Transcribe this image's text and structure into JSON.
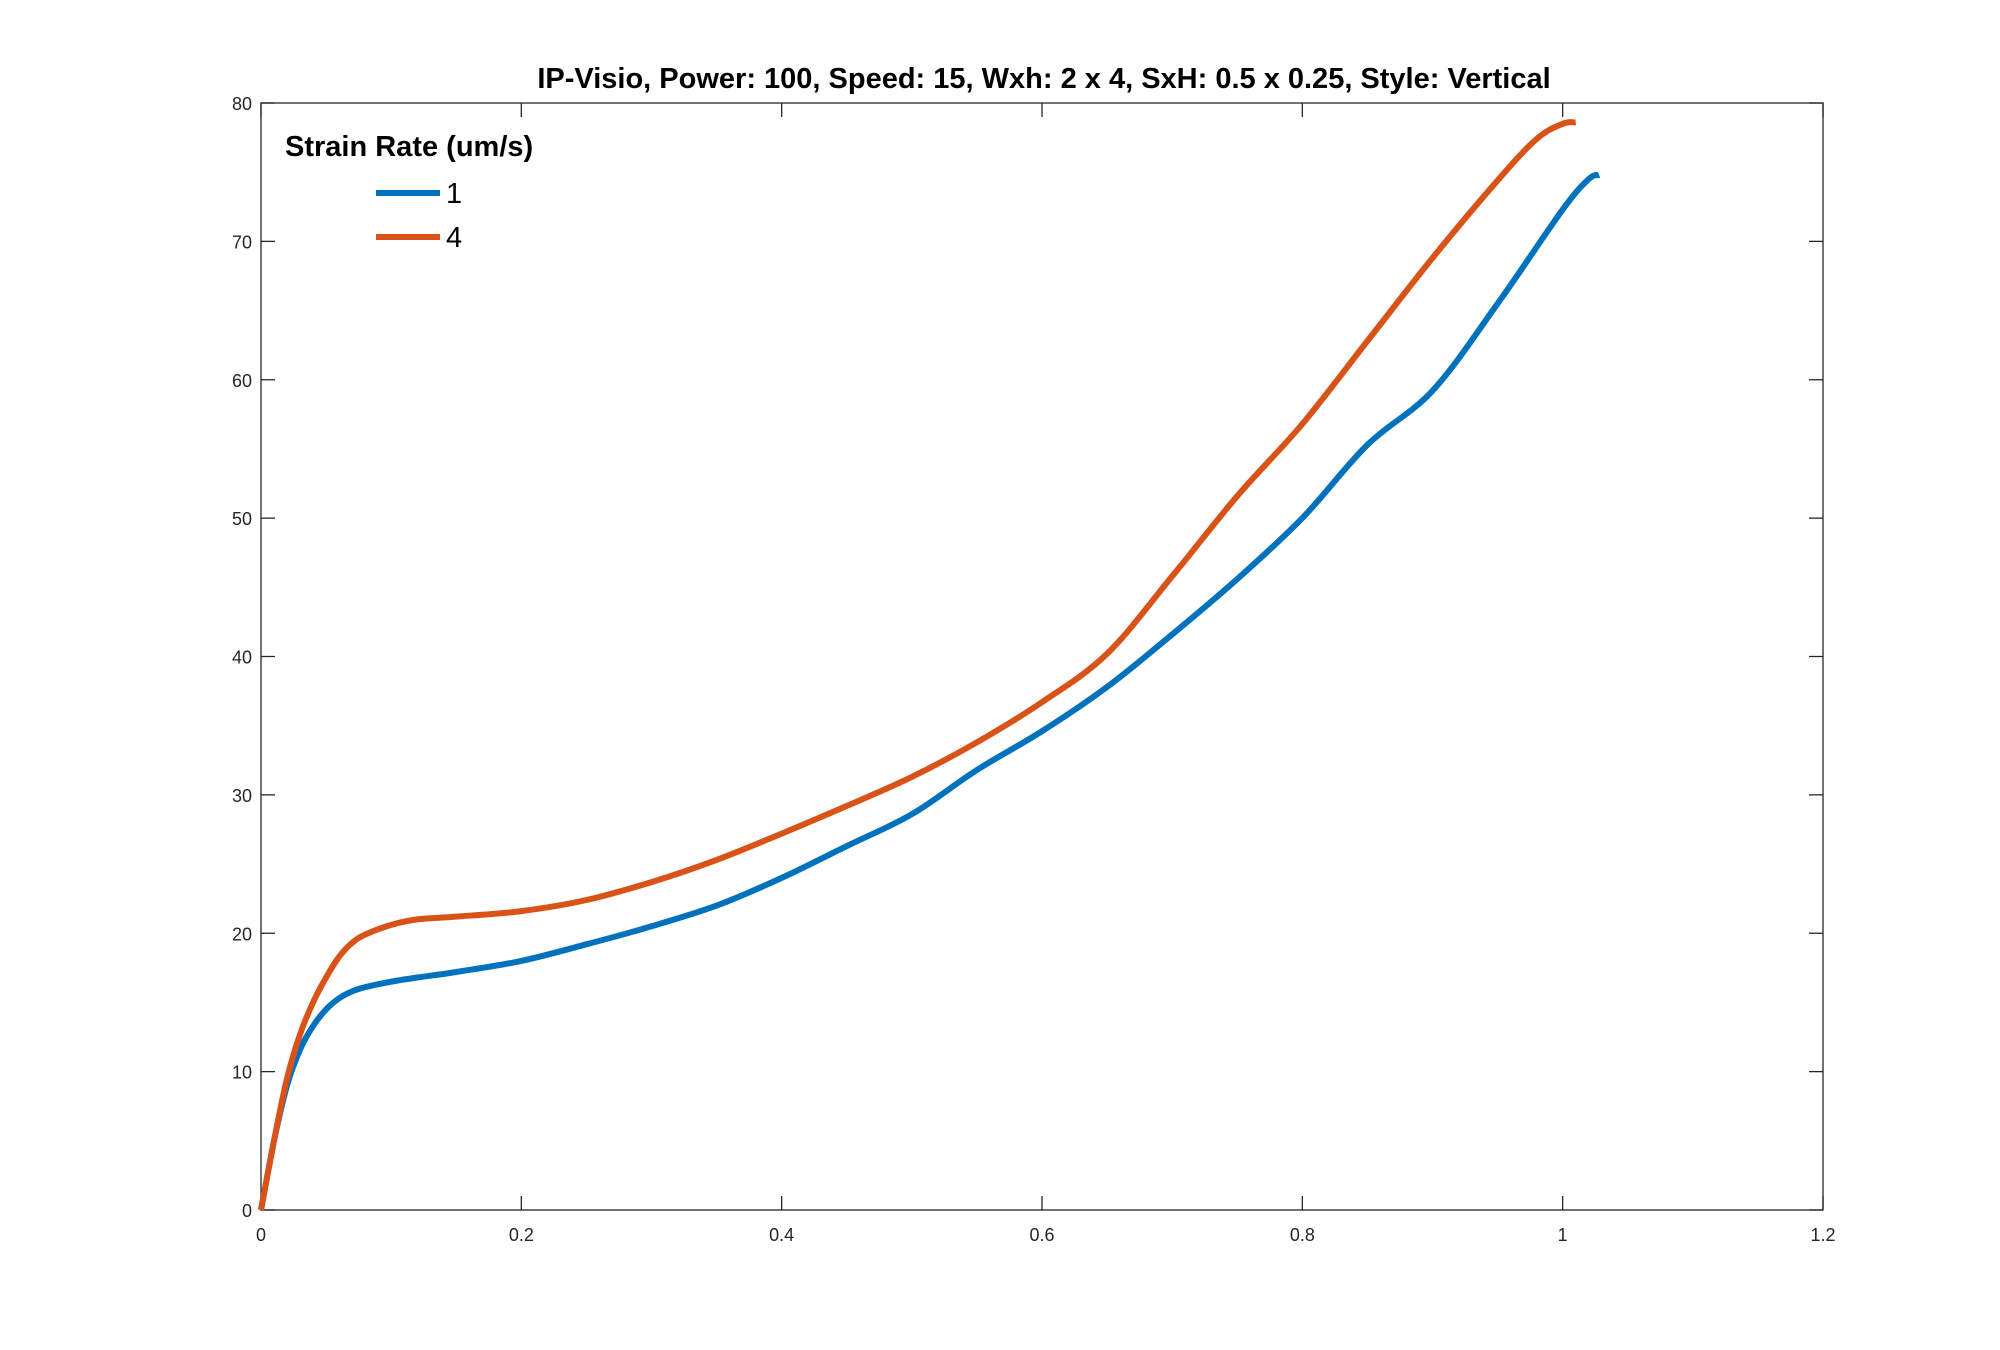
{
  "chart_data": {
    "type": "line",
    "title": "IP-Visio, Power: 100, Speed: 15, Wxh: 2 x 4, SxH: 0.5 x 0.25, Style: Vertical",
    "xlabel": "",
    "ylabel": "",
    "xlim": [
      0,
      1.2
    ],
    "ylim": [
      0,
      80
    ],
    "xticks": [
      0,
      0.2,
      0.4,
      0.6,
      0.8,
      1,
      1.2
    ],
    "xtick_labels": [
      "0",
      "0.2",
      "0.4",
      "0.6",
      "0.8",
      "1",
      "1.2"
    ],
    "yticks": [
      0,
      10,
      20,
      30,
      40,
      50,
      60,
      70,
      80
    ],
    "ytick_labels": [
      "0",
      "10",
      "20",
      "30",
      "40",
      "50",
      "60",
      "70",
      "80"
    ],
    "grid": false,
    "legend": {
      "title": "Strain Rate (um/s)",
      "placement": "top-left"
    },
    "series": [
      {
        "name": "1",
        "color": "#0072BD",
        "points": [
          [
            0,
            0
          ],
          [
            0.01,
            5
          ],
          [
            0.02,
            9
          ],
          [
            0.03,
            11.6
          ],
          [
            0.04,
            13.3
          ],
          [
            0.05,
            14.5
          ],
          [
            0.06,
            15.3
          ],
          [
            0.07,
            15.8
          ],
          [
            0.08,
            16.1
          ],
          [
            0.1,
            16.5
          ],
          [
            0.12,
            16.8
          ],
          [
            0.15,
            17.2
          ],
          [
            0.2,
            18
          ],
          [
            0.25,
            19.2
          ],
          [
            0.3,
            20.5
          ],
          [
            0.35,
            22
          ],
          [
            0.4,
            24
          ],
          [
            0.45,
            26.3
          ],
          [
            0.5,
            28.6
          ],
          [
            0.55,
            31.8
          ],
          [
            0.6,
            34.6
          ],
          [
            0.65,
            37.8
          ],
          [
            0.7,
            41.6
          ],
          [
            0.75,
            45.6
          ],
          [
            0.8,
            50
          ],
          [
            0.85,
            55.3
          ],
          [
            0.9,
            59.2
          ],
          [
            0.95,
            65.5
          ],
          [
            1.0,
            72.3
          ],
          [
            1.02,
            74.5
          ],
          [
            1.028,
            74.8
          ]
        ]
      },
      {
        "name": "4",
        "color": "#D95319",
        "points": [
          [
            0,
            0
          ],
          [
            0.01,
            5
          ],
          [
            0.02,
            9.5
          ],
          [
            0.03,
            12.7
          ],
          [
            0.04,
            15
          ],
          [
            0.05,
            16.8
          ],
          [
            0.06,
            18.3
          ],
          [
            0.07,
            19.3
          ],
          [
            0.08,
            19.9
          ],
          [
            0.1,
            20.6
          ],
          [
            0.12,
            21
          ],
          [
            0.15,
            21.2
          ],
          [
            0.2,
            21.6
          ],
          [
            0.25,
            22.4
          ],
          [
            0.3,
            23.7
          ],
          [
            0.35,
            25.3
          ],
          [
            0.4,
            27.2
          ],
          [
            0.45,
            29.2
          ],
          [
            0.5,
            31.3
          ],
          [
            0.55,
            33.8
          ],
          [
            0.6,
            36.7
          ],
          [
            0.65,
            40.2
          ],
          [
            0.7,
            45.8
          ],
          [
            0.75,
            51.6
          ],
          [
            0.8,
            56.8
          ],
          [
            0.85,
            62.8
          ],
          [
            0.9,
            68.8
          ],
          [
            0.95,
            74.4
          ],
          [
            0.98,
            77.4
          ],
          [
            1.0,
            78.5
          ],
          [
            1.01,
            78.6
          ]
        ]
      }
    ]
  }
}
